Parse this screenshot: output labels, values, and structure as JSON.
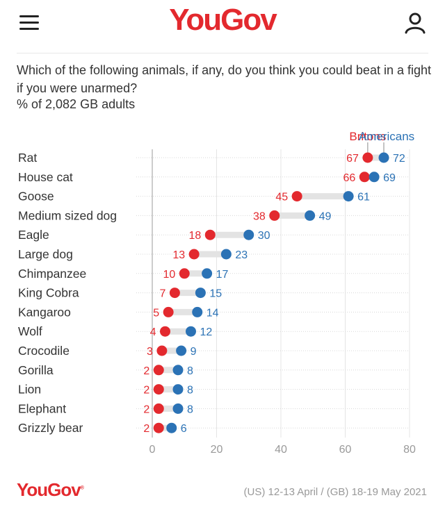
{
  "header": {
    "brand": "YouGov",
    "menu_icon": "hamburger-menu-icon",
    "account_icon": "user-account-icon"
  },
  "question": "Which of the following animals, if any, do you think you could beat in a fight if you were unarmed?",
  "subtitle": "% of 2,082 GB adults",
  "colors": {
    "brand": "#e3292e",
    "britons": "#e3292e",
    "americans": "#2b72b5",
    "connector": "#e3e3e3"
  },
  "chart_data": {
    "type": "dumbbell",
    "title": "Which of the following animals, if any, do you think you could beat in a fight if you were unarmed?",
    "xlim": [
      0,
      80
    ],
    "xticks": [
      0,
      20,
      40,
      60,
      80
    ],
    "grid": true,
    "legend_position": "top-right",
    "categories": [
      "Rat",
      "House cat",
      "Goose",
      "Medium sized dog",
      "Eagle",
      "Large dog",
      "Chimpanzee",
      "King Cobra",
      "Kangaroo",
      "Wolf",
      "Crocodile",
      "Gorilla",
      "Lion",
      "Elephant",
      "Grizzly bear"
    ],
    "series": [
      {
        "name": "Britons",
        "values": [
          67,
          66,
          45,
          38,
          18,
          13,
          10,
          7,
          5,
          4,
          3,
          2,
          2,
          2,
          2
        ]
      },
      {
        "name": "Americans",
        "values": [
          72,
          69,
          61,
          49,
          30,
          23,
          17,
          15,
          14,
          12,
          9,
          8,
          8,
          8,
          6
        ]
      }
    ]
  },
  "footer": {
    "logo": "YouGov",
    "registered_mark": "®",
    "date_range": "(US) 12-13 April / (GB) 18-19 May 2021"
  }
}
